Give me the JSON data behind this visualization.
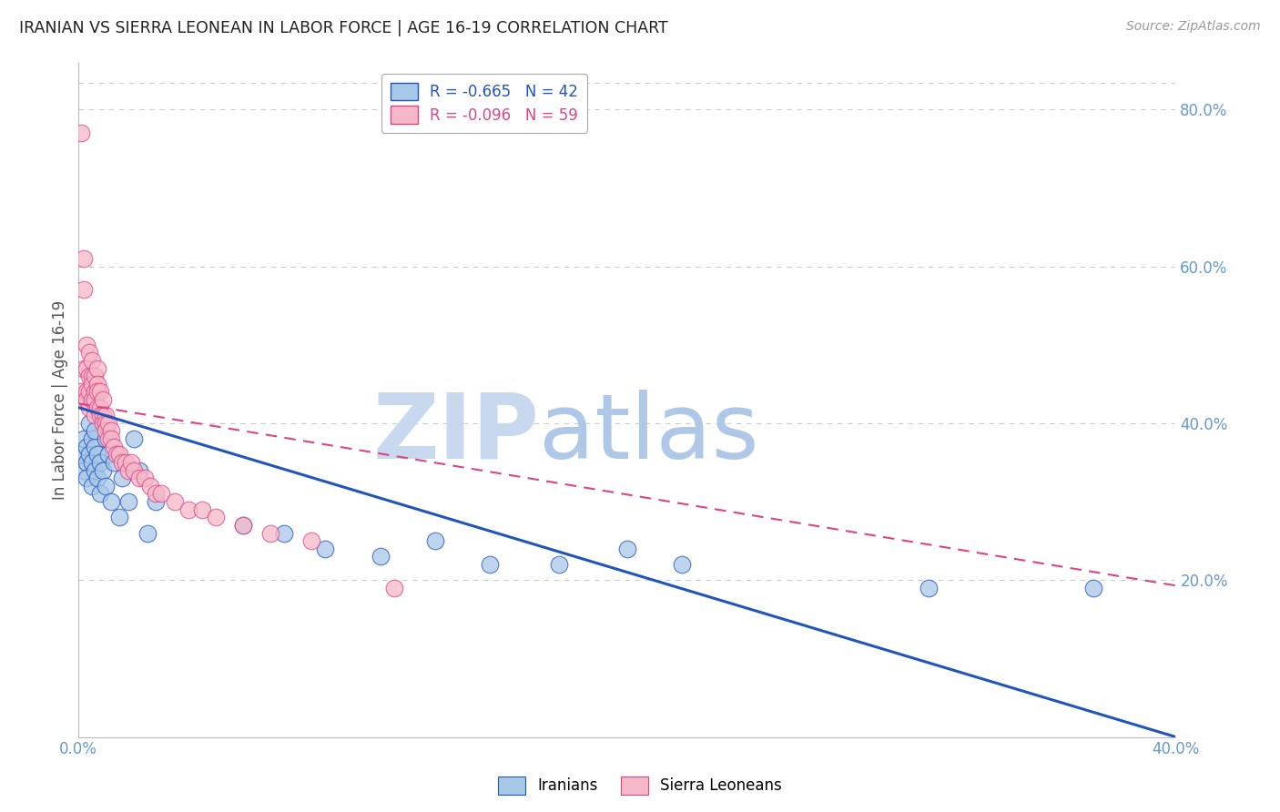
{
  "title": "IRANIAN VS SIERRA LEONEAN IN LABOR FORCE | AGE 16-19 CORRELATION CHART",
  "source": "Source: ZipAtlas.com",
  "ylabel": "In Labor Force | Age 16-19",
  "watermark_zip": "ZIP",
  "watermark_atlas": "atlas",
  "legend_iranian": "R = -0.665   N = 42",
  "legend_sierra": "R = -0.096   N = 59",
  "iranian_color": "#a8c8e8",
  "sierra_color": "#f5b8c8",
  "iranian_line_color": "#2255bb",
  "sierra_line_color": "#dd4488",
  "grid_color": "#cccccc",
  "right_axis_color": "#6699cc",
  "title_color": "#222222",
  "watermark_zip_color": "#c8d8ee",
  "watermark_atlas_color": "#b0c8e8",
  "iranian_x": [
    0.001,
    0.002,
    0.002,
    0.003,
    0.003,
    0.003,
    0.004,
    0.004,
    0.005,
    0.005,
    0.005,
    0.006,
    0.006,
    0.006,
    0.007,
    0.007,
    0.008,
    0.008,
    0.009,
    0.01,
    0.01,
    0.011,
    0.012,
    0.013,
    0.015,
    0.016,
    0.018,
    0.02,
    0.022,
    0.025,
    0.028,
    0.06,
    0.075,
    0.09,
    0.11,
    0.13,
    0.15,
    0.175,
    0.2,
    0.22,
    0.31,
    0.37
  ],
  "iranian_y": [
    0.36,
    0.38,
    0.34,
    0.37,
    0.35,
    0.33,
    0.4,
    0.36,
    0.38,
    0.35,
    0.32,
    0.37,
    0.39,
    0.34,
    0.36,
    0.33,
    0.35,
    0.31,
    0.34,
    0.38,
    0.32,
    0.36,
    0.3,
    0.35,
    0.28,
    0.33,
    0.3,
    0.38,
    0.34,
    0.26,
    0.3,
    0.27,
    0.26,
    0.24,
    0.23,
    0.25,
    0.22,
    0.22,
    0.24,
    0.22,
    0.19,
    0.19
  ],
  "sierra_x": [
    0.001,
    0.001,
    0.002,
    0.002,
    0.002,
    0.003,
    0.003,
    0.003,
    0.003,
    0.004,
    0.004,
    0.004,
    0.004,
    0.005,
    0.005,
    0.005,
    0.005,
    0.006,
    0.006,
    0.006,
    0.006,
    0.007,
    0.007,
    0.007,
    0.007,
    0.008,
    0.008,
    0.008,
    0.009,
    0.009,
    0.009,
    0.01,
    0.01,
    0.01,
    0.011,
    0.011,
    0.012,
    0.012,
    0.013,
    0.014,
    0.015,
    0.016,
    0.017,
    0.018,
    0.019,
    0.02,
    0.022,
    0.024,
    0.026,
    0.028,
    0.03,
    0.035,
    0.04,
    0.045,
    0.05,
    0.06,
    0.07,
    0.085,
    0.115
  ],
  "sierra_y": [
    0.77,
    0.44,
    0.61,
    0.57,
    0.47,
    0.5,
    0.47,
    0.44,
    0.43,
    0.49,
    0.46,
    0.44,
    0.42,
    0.48,
    0.46,
    0.45,
    0.43,
    0.46,
    0.44,
    0.43,
    0.41,
    0.47,
    0.45,
    0.44,
    0.42,
    0.44,
    0.42,
    0.41,
    0.43,
    0.41,
    0.4,
    0.41,
    0.4,
    0.39,
    0.4,
    0.38,
    0.39,
    0.38,
    0.37,
    0.36,
    0.36,
    0.35,
    0.35,
    0.34,
    0.35,
    0.34,
    0.33,
    0.33,
    0.32,
    0.31,
    0.31,
    0.3,
    0.29,
    0.29,
    0.28,
    0.27,
    0.26,
    0.25,
    0.19
  ],
  "xlim": [
    0.0,
    0.4
  ],
  "ylim": [
    0.0,
    0.86
  ],
  "xtick_positions": [
    0.0,
    0.4
  ],
  "xtick_labels": [
    "0.0%",
    "40.0%"
  ],
  "yticks_right": [
    0.2,
    0.4,
    0.6,
    0.8
  ],
  "iranian_reg": [
    0.42,
    -1.05
  ],
  "sierra_reg": [
    0.425,
    -0.58
  ],
  "background_color": "#ffffff"
}
